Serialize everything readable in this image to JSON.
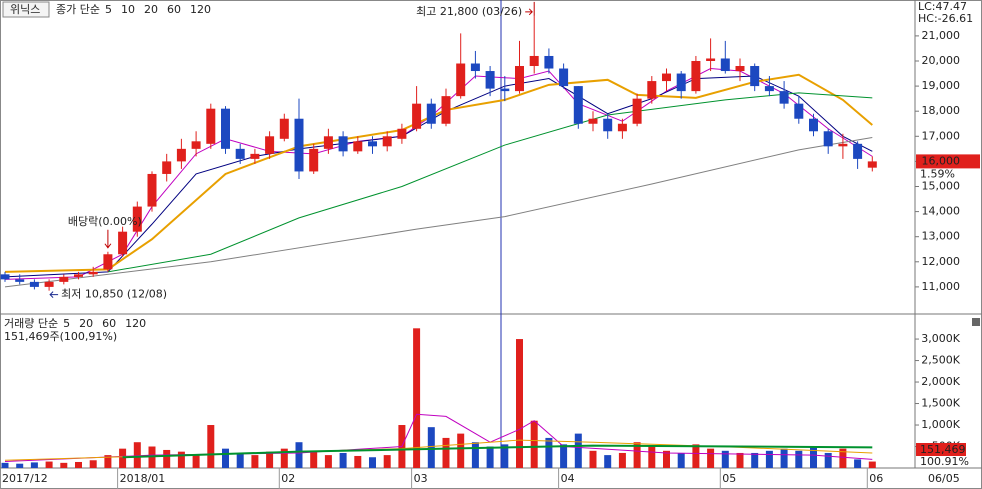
{
  "header": {
    "name": "위닉스"
  },
  "chart_data": [
    {
      "type": "candlestick",
      "legend_prefix": "종가 단순",
      "categories": [
        "2017/12",
        null,
        null,
        null,
        null,
        null,
        null,
        null,
        "2018/01",
        null,
        null,
        null,
        null,
        null,
        null,
        null,
        null,
        null,
        null,
        "02",
        null,
        null,
        null,
        null,
        null,
        null,
        null,
        null,
        "03",
        null,
        null,
        null,
        null,
        null,
        null,
        null,
        null,
        null,
        "04",
        null,
        null,
        null,
        null,
        null,
        null,
        null,
        null,
        null,
        null,
        "05",
        null,
        null,
        null,
        null,
        null,
        null,
        null,
        null,
        null,
        "06"
      ],
      "open": [
        11500,
        11300,
        11200,
        11000,
        11200,
        11400,
        11500,
        11700,
        12300,
        13200,
        14200,
        15500,
        16000,
        16500,
        16700,
        18100,
        16500,
        16100,
        16300,
        16900,
        17700,
        15600,
        16500,
        17000,
        16400,
        16800,
        16600,
        16900,
        17300,
        18300,
        17500,
        18600,
        19900,
        19600,
        18900,
        18800,
        19800,
        20200,
        19700,
        19000,
        17500,
        17700,
        17200,
        17500,
        18500,
        19200,
        19500,
        18800,
        20000,
        20100,
        19600,
        19800,
        19000,
        18800,
        18300,
        17700,
        17200,
        16600,
        16700,
        15750
      ],
      "high": [
        11600,
        11500,
        11300,
        11300,
        11500,
        11600,
        11800,
        12400,
        13400,
        14400,
        15600,
        16300,
        16900,
        17200,
        18300,
        18200,
        16700,
        16500,
        17200,
        17900,
        18500,
        16700,
        17300,
        17200,
        17000,
        17000,
        17200,
        17500,
        19000,
        18500,
        18900,
        21100,
        20400,
        19800,
        19400,
        20800,
        21800,
        20500,
        19900,
        19000,
        18000,
        17900,
        17700,
        18700,
        19400,
        19700,
        19600,
        20200,
        20900,
        20800,
        20100,
        19900,
        19400,
        19200,
        18600,
        17900,
        17300,
        17100,
        16800,
        16200
      ],
      "low": [
        11200,
        11100,
        10900,
        10850,
        11100,
        11300,
        11400,
        11600,
        12200,
        13000,
        14000,
        15200,
        15700,
        16200,
        16500,
        16300,
        15900,
        15900,
        16100,
        16800,
        15300,
        15500,
        16300,
        16200,
        16300,
        16300,
        16400,
        16700,
        17200,
        17300,
        17400,
        18500,
        19300,
        18600,
        18400,
        18700,
        19500,
        19500,
        18900,
        17300,
        17200,
        16900,
        16900,
        17400,
        18300,
        18800,
        18500,
        18700,
        19600,
        19500,
        19200,
        18800,
        18600,
        18100,
        17500,
        17000,
        16300,
        16100,
        15700,
        15600
      ],
      "close": [
        11300,
        11200,
        11000,
        11200,
        11400,
        11500,
        11600,
        12300,
        13200,
        14200,
        15500,
        16000,
        16500,
        16800,
        18100,
        16500,
        16100,
        16300,
        17000,
        17700,
        15600,
        16500,
        17000,
        16400,
        16800,
        16600,
        17000,
        17300,
        18300,
        17500,
        18600,
        19900,
        19600,
        18900,
        18800,
        19800,
        20200,
        19700,
        19000,
        17500,
        17700,
        17200,
        17500,
        18500,
        19200,
        19500,
        18800,
        20000,
        20100,
        19600,
        19800,
        19000,
        18800,
        18300,
        17700,
        17200,
        16600,
        16700,
        16100,
        16000
      ],
      "up_color": "#e0201c",
      "down_color": "#1c48c0",
      "ma": [
        {
          "name": "5",
          "color": "#c000c0",
          "x": [
            0,
            5,
            8,
            10,
            13,
            15,
            18,
            21,
            24,
            27,
            29,
            32,
            35,
            37,
            39,
            42,
            45,
            48,
            50,
            53,
            56,
            59
          ],
          "values": [
            11300,
            11400,
            12300,
            14200,
            16300,
            16900,
            16400,
            16300,
            16800,
            17000,
            17800,
            19400,
            19300,
            19600,
            18300,
            17600,
            18800,
            19700,
            19600,
            18700,
            17300,
            16200
          ]
        },
        {
          "name": "10",
          "color": "#000080",
          "x": [
            0,
            7,
            10,
            13,
            17,
            20,
            27,
            30,
            34,
            37,
            41,
            44,
            47,
            51,
            54,
            57,
            59
          ],
          "values": [
            11400,
            11600,
            13500,
            15500,
            16200,
            16500,
            17000,
            18000,
            19000,
            19300,
            17900,
            18500,
            19300,
            19400,
            18600,
            17000,
            16400
          ]
        },
        {
          "name": "20",
          "color": "#e8a000",
          "x": [
            0,
            7,
            10,
            15,
            20,
            27,
            30,
            34,
            37,
            41,
            43,
            47,
            51,
            54,
            57,
            59
          ],
          "values": [
            11600,
            11700,
            12900,
            15500,
            16600,
            17250,
            18050,
            18450,
            19050,
            19250,
            18650,
            18530,
            19170,
            19450,
            18450,
            17450
          ]
        },
        {
          "name": "60",
          "color": "#00922e",
          "x": [
            7,
            14,
            20,
            27,
            34,
            41,
            49,
            54,
            59
          ],
          "values": [
            11600,
            12300,
            13750,
            15000,
            16650,
            17850,
            18450,
            18730,
            18530
          ]
        },
        {
          "name": "120",
          "color": "#808080",
          "x": [
            0,
            14,
            28,
            34,
            44,
            54,
            59
          ],
          "values": [
            11000,
            12000,
            13300,
            13800,
            15100,
            16460,
            16950
          ]
        }
      ],
      "annotations": {
        "high": "최고 21,800 (03/26)",
        "low": "최저 10,850 (12/08)",
        "dividend": "배당락(0.00%)"
      },
      "indicators": {
        "lc": "LC:47.47",
        "hc": "HC:-26.61"
      },
      "last_label": "16,000",
      "change_label": "1.59%",
      "ylim": [
        9960,
        22430
      ],
      "yticks": [
        {
          "value": 11000,
          "label": "11,000"
        },
        {
          "value": 12000,
          "label": "12,000"
        },
        {
          "value": 13000,
          "label": "13,000"
        },
        {
          "value": 14000,
          "label": "14,000"
        },
        {
          "value": 15000,
          "label": "15,000"
        },
        {
          "value": 16000,
          "label": "16,000"
        },
        {
          "value": 17000,
          "label": "17,000"
        },
        {
          "value": 18000,
          "label": "18,000"
        },
        {
          "value": 19000,
          "label": "19,000"
        },
        {
          "value": 20000,
          "label": "20,000"
        },
        {
          "value": 21000,
          "label": "21,000"
        }
      ]
    },
    {
      "type": "bar",
      "legend_prefix": "거래량 단순",
      "summary": "151,469주(100,91%)",
      "values": [
        120,
        100,
        130,
        150,
        120,
        140,
        180,
        300,
        450,
        600,
        500,
        420,
        380,
        300,
        1000,
        450,
        350,
        300,
        380,
        450,
        600,
        380,
        300,
        350,
        280,
        250,
        300,
        1000,
        3250,
        950,
        700,
        800,
        600,
        500,
        550,
        3000,
        1100,
        700,
        550,
        800,
        400,
        300,
        350,
        600,
        500,
        400,
        350,
        550,
        450,
        400,
        350,
        350,
        400,
        450,
        400,
        500,
        350,
        450,
        200,
        150
      ],
      "ma": [
        {
          "name": "5",
          "color": "#c000c0",
          "x": [
            0,
            10,
            20,
            27,
            28,
            30,
            33,
            35,
            36,
            38,
            45,
            55,
            59
          ],
          "values": [
            150,
            300,
            350,
            500,
            1250,
            1200,
            600,
            900,
            1100,
            500,
            350,
            300,
            200
          ]
        },
        {
          "name": "20",
          "color": "#e8a000",
          "x": [
            0,
            15,
            27,
            35,
            40,
            50,
            59
          ],
          "values": [
            180,
            330,
            450,
            650,
            600,
            480,
            350
          ]
        },
        {
          "name": "60",
          "color": "#00922e",
          "x": [
            8,
            20,
            30,
            40,
            50,
            59
          ],
          "values": [
            250,
            380,
            450,
            520,
            500,
            480
          ]
        },
        {
          "name": "120",
          "color": "#808080",
          "x": [],
          "values": []
        }
      ],
      "last_label": "151,469",
      "ratio_label": "100.91%",
      "ylim": [
        0,
        3490
      ],
      "yticks": [
        {
          "value": 500,
          "label": "500K"
        },
        {
          "value": 1000,
          "label": "1,000K"
        },
        {
          "value": 1500,
          "label": "1,500K"
        },
        {
          "value": 2000,
          "label": "2,000K"
        },
        {
          "value": 2500,
          "label": "2,500K"
        },
        {
          "value": 3000,
          "label": "3,000K"
        }
      ],
      "date_label": "06/05"
    }
  ]
}
